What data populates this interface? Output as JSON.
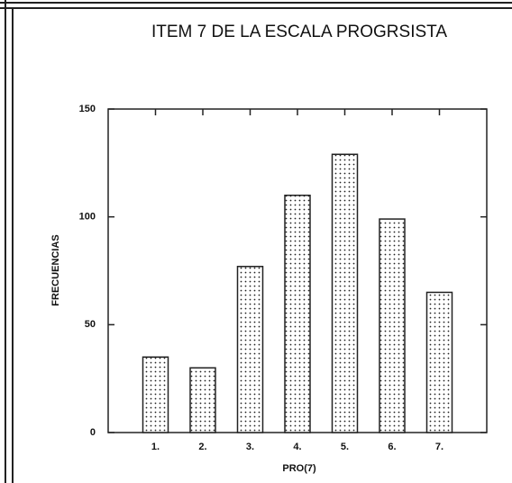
{
  "chart_data": {
    "type": "bar",
    "title": "ITEM 7 DE LA ESCALA PROGRSISTA",
    "y_label": "FRECUENCIAS",
    "x_label": "PRO(7)",
    "categories": [
      "1.",
      "2.",
      "3.",
      "4.",
      "5.",
      "6.",
      "7."
    ],
    "values": [
      35,
      30,
      77,
      110,
      129,
      99,
      65
    ],
    "color": "#ffffff",
    "ylim": [
      0,
      150
    ],
    "yticks": [
      0,
      50,
      100,
      150
    ],
    "grid": false
  }
}
